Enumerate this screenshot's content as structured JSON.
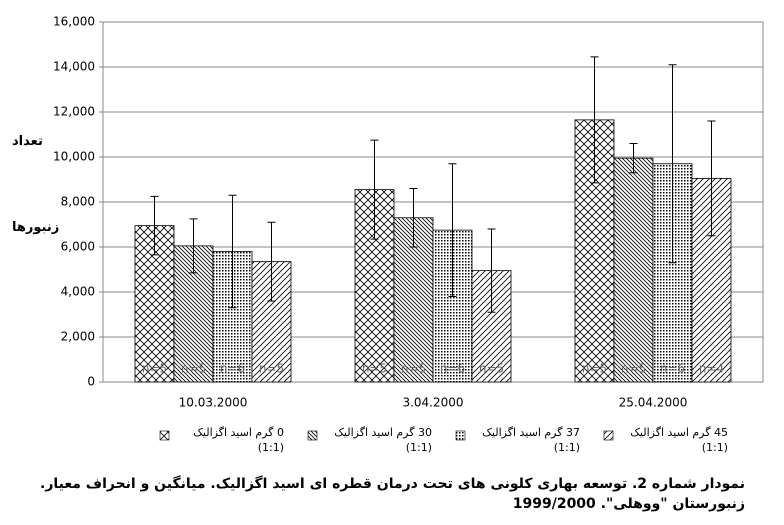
{
  "chart_data": {
    "type": "bar",
    "y_label_top": "تعداد",
    "y_label_bottom": "زنبورها",
    "categories": [
      "10.03.2000",
      "3.04.2000",
      "25.04.2000"
    ],
    "ylim": [
      0,
      16000
    ],
    "yticks": [
      0,
      {
        "value": 2000,
        "label": "2,000"
      },
      {
        "value": 4000,
        "label": "4,000"
      },
      {
        "value": 6000,
        "label": "6,000"
      },
      {
        "value": 8000,
        "label": "8,000"
      },
      {
        "value": 10000,
        "label": "10,000"
      },
      {
        "value": 12000,
        "label": "12,000"
      },
      {
        "value": 14000,
        "label": "14,000"
      },
      {
        "value": 16000,
        "label": "16,000"
      }
    ],
    "grid": true,
    "series": [
      {
        "name": "0 گرم اسید اگزالیک (1:1)",
        "pattern": "crosshatch",
        "values": [
          6950,
          8550,
          11650
        ],
        "errors": [
          1300,
          2200,
          2800
        ],
        "n_labels": [
          "n=5",
          "n=5",
          "n=5"
        ]
      },
      {
        "name": "30 گرم اسید اگزالیک (1:1)",
        "pattern": "back-diagonal",
        "values": [
          6050,
          7300,
          9950
        ],
        "errors": [
          1200,
          1300,
          650
        ],
        "n_labels": [
          "n=5",
          "n=5",
          "n=5"
        ]
      },
      {
        "name": "37 گرم اسید اگزالیک (1:1)",
        "pattern": "grid",
        "values": [
          5800,
          6750,
          9700
        ],
        "errors": [
          2500,
          2950,
          4400
        ],
        "n_labels": [
          "n=6",
          "n=6",
          "n=6"
        ]
      },
      {
        "name": "45 گرم اسید اگزالیک (1:1)",
        "pattern": "forward-diagonal",
        "values": [
          5350,
          4950,
          9050
        ],
        "errors": [
          1750,
          1850,
          2550
        ],
        "n_labels": [
          "n=5",
          "n=5",
          "n=4"
        ]
      }
    ],
    "caption": "نمودار شماره 2. توسعه بهاری کلونی های تحت درمان قطره ای اسید اگزالیک. میانگین و انحراف معیار. زنبورستان \"ووهلی\". 1999/2000"
  }
}
